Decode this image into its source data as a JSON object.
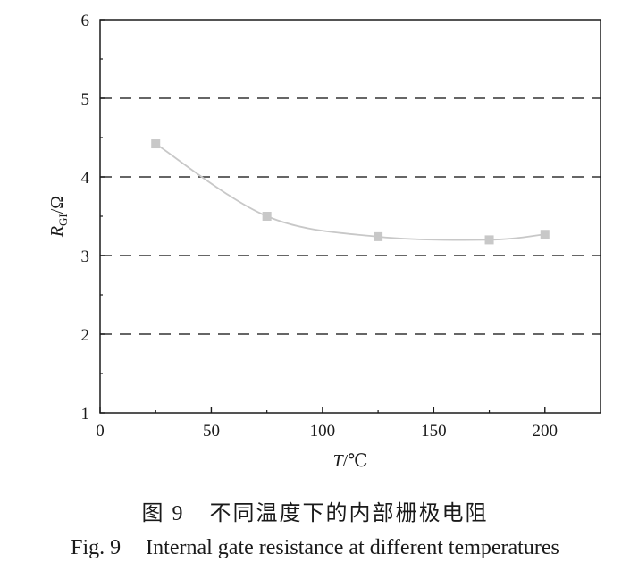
{
  "chart_data": {
    "type": "line",
    "x": [
      25,
      75,
      125,
      175,
      200
    ],
    "series": [
      {
        "values": [
          4.42,
          3.5,
          3.24,
          3.2,
          3.27
        ],
        "color": "#c8c8c8"
      }
    ],
    "xlabel_var": "T",
    "xlabel_unit": "/℃",
    "ylabel_var": "R",
    "ylabel_sub": "GI",
    "ylabel_unit": "/Ω",
    "xlim": [
      0,
      225
    ],
    "ylim": [
      1,
      6
    ],
    "xticks": [
      0,
      50,
      100,
      150,
      200
    ],
    "yticks": [
      1,
      2,
      3,
      4,
      5,
      6
    ],
    "grid": "horizontal dashed at 2, 3, 4, 5",
    "grid_color": "#333333",
    "axis_color": "#1a1a1a"
  },
  "caption": {
    "cn_label": "图 9",
    "cn_text": "不同温度下的内部栅极电阻",
    "en_label": "Fig. 9",
    "en_text": "Internal gate resistance at different temperatures"
  }
}
